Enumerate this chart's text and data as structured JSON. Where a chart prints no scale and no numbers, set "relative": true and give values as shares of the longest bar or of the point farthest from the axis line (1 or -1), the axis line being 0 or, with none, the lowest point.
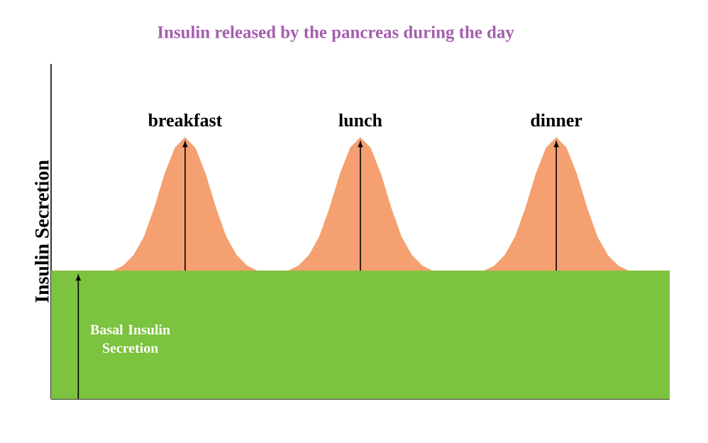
{
  "chart_data": {
    "type": "area",
    "title": "Insulin released by the pancreas during the day",
    "ylabel": "Insulin Secretion",
    "annotations": [
      "breakfast",
      "lunch",
      "dinner",
      "Basal Insulin Secretion"
    ],
    "relative": true,
    "categories": [
      null,
      null,
      null,
      null,
      null,
      null,
      null,
      null,
      null,
      null,
      null,
      null,
      null,
      null,
      null,
      null,
      null,
      null,
      null,
      null,
      null,
      null,
      null,
      null,
      null,
      null,
      null,
      null,
      null,
      null,
      null,
      null,
      null,
      null,
      null,
      null,
      null,
      null,
      null,
      null,
      null,
      null,
      null,
      null,
      null,
      null,
      null,
      null,
      null,
      null,
      null,
      null,
      null,
      null,
      null,
      null,
      null,
      null,
      null,
      null,
      null
    ],
    "series": [
      {
        "color": "#f5a070",
        "values": [
          0.49,
          0.49,
          0.49,
          0.49,
          0.49,
          0.49,
          0.49,
          0.51,
          0.55,
          0.62,
          0.73,
          0.86,
          0.96,
          1,
          0.96,
          0.86,
          0.73,
          0.62,
          0.55,
          0.51,
          0.49,
          0.49,
          0.49,
          0.49,
          0.51,
          0.55,
          0.62,
          0.73,
          0.86,
          0.96,
          1,
          0.96,
          0.86,
          0.73,
          0.62,
          0.55,
          0.51,
          0.49,
          0.49,
          0.49,
          0.49,
          0.49,
          0.49,
          0.51,
          0.55,
          0.62,
          0.73,
          0.86,
          0.96,
          1,
          0.96,
          0.86,
          0.73,
          0.62,
          0.55,
          0.51,
          0.49,
          0.49,
          0.49,
          0.49,
          0.49
        ]
      },
      {
        "color": "#7cc33f",
        "values": [
          0.49,
          0.49,
          0.49,
          0.49,
          0.49,
          0.49,
          0.49,
          0.49,
          0.49,
          0.49,
          0.49,
          0.49,
          0.49,
          0.49,
          0.49,
          0.49,
          0.49,
          0.49,
          0.49,
          0.49,
          0.49,
          0.49,
          0.49,
          0.49,
          0.49,
          0.49,
          0.49,
          0.49,
          0.49,
          0.49,
          0.49,
          0.49,
          0.49,
          0.49,
          0.49,
          0.49,
          0.49,
          0.49,
          0.49,
          0.49,
          0.49,
          0.49,
          0.49,
          0.49,
          0.49,
          0.49,
          0.49,
          0.49,
          0.49,
          0.49,
          0.49,
          0.49,
          0.49,
          0.49,
          0.49,
          0.49,
          0.49,
          0.49,
          0.49,
          0.49,
          0.49
        ]
      }
    ]
  }
}
